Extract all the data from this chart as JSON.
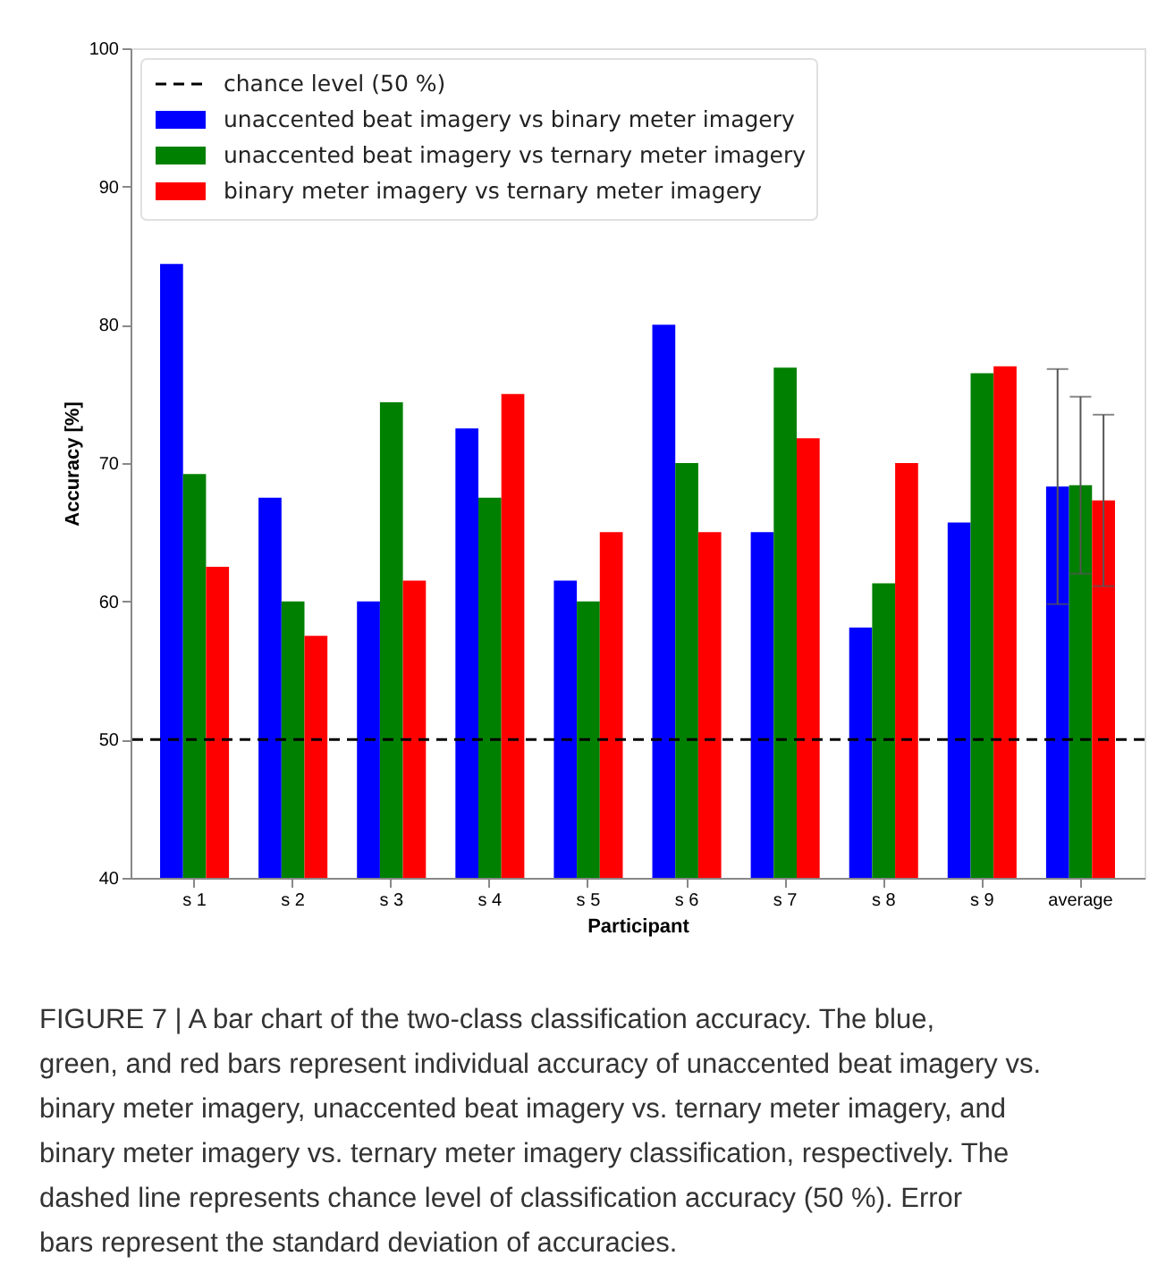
{
  "chart_data": {
    "type": "bar",
    "xlabel": "Participant",
    "ylabel": "Accuracy [%]",
    "categories": [
      "s 1",
      "s 2",
      "s 3",
      "s 4",
      "s 5",
      "s 6",
      "s 7",
      "s 8",
      "s 9",
      "average"
    ],
    "series": [
      {
        "name": "unaccented beat imagery vs binary meter imagery",
        "color": "#0000ff",
        "values": [
          84.4,
          67.5,
          60,
          72.5,
          61.5,
          80,
          65,
          58.1,
          65.7,
          68.3
        ],
        "errors": [
          null,
          null,
          null,
          null,
          null,
          null,
          null,
          null,
          null,
          8.5
        ]
      },
      {
        "name": "unaccented beat imagery vs ternary meter imagery",
        "color": "#008000",
        "values": [
          69.2,
          60,
          74.4,
          67.5,
          60,
          70,
          76.9,
          61.3,
          76.5,
          68.4
        ],
        "errors": [
          null,
          null,
          null,
          null,
          null,
          null,
          null,
          null,
          null,
          6.4
        ]
      },
      {
        "name": "binary meter imagery vs ternary meter imagery",
        "color": "#ff0000",
        "values": [
          62.5,
          57.5,
          61.5,
          75,
          65,
          65,
          71.8,
          70,
          77.0,
          67.3
        ],
        "errors": [
          null,
          null,
          null,
          null,
          null,
          null,
          null,
          null,
          null,
          6.2
        ]
      }
    ],
    "ylim": [
      40,
      100
    ],
    "yticks": [
      40,
      50,
      60,
      70,
      80,
      90,
      100
    ],
    "ref_lines": [
      {
        "axis": "y",
        "value": 50,
        "label": "chance level (50 %)",
        "color": "#000000",
        "line_style": "dashed"
      }
    ],
    "legend": "top left",
    "grid": false,
    "annotations": [
      "FIGURE 7 | A bar chart of the two-class classification accuracy. The blue, green, and red bars represent individual accuracy of unaccented beat imagery vs. binary meter imagery, unaccented beat imagery vs. ternary meter imagery, and binary meter imagery vs. ternary meter imagery classification, respectively. The dashed line represents chance level of classification accuracy (50 %). Error bars represent the standard deviation of accuracies."
    ]
  }
}
